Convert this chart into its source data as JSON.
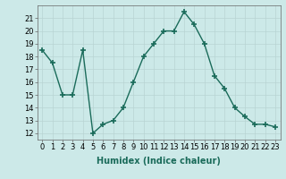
{
  "x": [
    0,
    1,
    2,
    3,
    4,
    5,
    6,
    7,
    8,
    9,
    10,
    11,
    12,
    13,
    14,
    15,
    16,
    17,
    18,
    19,
    20,
    21,
    22,
    23
  ],
  "y": [
    18.5,
    17.5,
    15.0,
    15.0,
    18.5,
    12.0,
    12.7,
    13.0,
    14.0,
    16.0,
    18.0,
    19.0,
    20.0,
    20.0,
    21.5,
    20.5,
    19.0,
    16.5,
    15.5,
    14.0,
    13.3,
    12.7,
    12.7,
    12.5
  ],
  "line_color": "#1a6b5a",
  "marker": "+",
  "marker_size": 4,
  "marker_linewidth": 1.2,
  "xlabel": "Humidex (Indice chaleur)",
  "xlabel_fontsize": 7,
  "ylim": [
    11.5,
    22.0
  ],
  "xlim": [
    -0.5,
    23.5
  ],
  "yticks": [
    12,
    13,
    14,
    15,
    16,
    17,
    18,
    19,
    20,
    21
  ],
  "xtick_labels": [
    "0",
    "1",
    "2",
    "3",
    "4",
    "5",
    "6",
    "7",
    "8",
    "9",
    "10",
    "11",
    "12",
    "13",
    "14",
    "15",
    "16",
    "17",
    "18",
    "19",
    "20",
    "21",
    "22",
    "23"
  ],
  "background_color": "#cce9e8",
  "grid_color": "#b8d4d3",
  "tick_fontsize": 6,
  "linewidth": 1.0
}
